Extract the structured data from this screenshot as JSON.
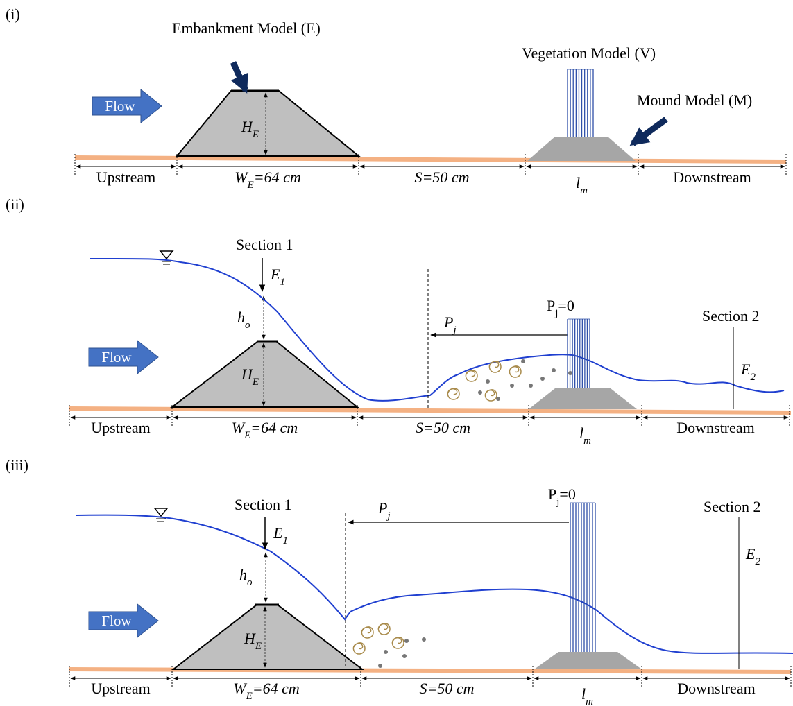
{
  "panels": [
    {
      "label": "(i)",
      "embankment_model": "Embankment Model (E)",
      "vegetation_model": "Vegetation Model (V)",
      "mound_model": "Mound Model (M)",
      "flow": "Flow",
      "embankment_height": {
        "main": "H",
        "sub": "E"
      },
      "dimensions": [
        {
          "main": "Upstream"
        },
        {
          "main": "W",
          "sub": "E",
          "tail": "=64 cm"
        },
        {
          "main": "S=50 cm"
        },
        {
          "main": "l",
          "sub": "m"
        },
        {
          "main": "Downstream"
        }
      ]
    },
    {
      "label": "(ii)",
      "section_1": "Section 1",
      "energy_1": {
        "main": "E",
        "sub": "1"
      },
      "overflow_depth": {
        "main": "h",
        "sub": "o"
      },
      "flow": "Flow",
      "embankment_height": {
        "main": "H",
        "sub": "E"
      },
      "jump_position": {
        "main": "P",
        "sub": "j"
      },
      "jump_origin": {
        "main": "P",
        "sub": "j",
        "tail": "=0"
      },
      "section_2": "Section 2",
      "energy_2": {
        "main": "E",
        "sub": "2"
      },
      "dimensions": [
        {
          "main": "Upstream"
        },
        {
          "main": "W",
          "sub": "E",
          "tail": "=64 cm"
        },
        {
          "main": "S=50 cm"
        },
        {
          "main": "l",
          "sub": "m"
        },
        {
          "main": "Downstream"
        }
      ]
    },
    {
      "label": "(iii)",
      "section_1": "Section 1",
      "energy_1": {
        "main": "E",
        "sub": "1"
      },
      "overflow_depth": {
        "main": "h",
        "sub": "o"
      },
      "flow": "Flow",
      "embankment_height": {
        "main": "H",
        "sub": "E"
      },
      "jump_position": {
        "main": "P",
        "sub": "j"
      },
      "jump_origin": {
        "main": "P",
        "sub": "j",
        "tail": "=0"
      },
      "section_2": "Section 2",
      "energy_2": {
        "main": "E",
        "sub": "2"
      },
      "dimensions": [
        {
          "main": "Upstream"
        },
        {
          "main": "W",
          "sub": "E",
          "tail": "=64 cm"
        },
        {
          "main": "S=50 cm"
        },
        {
          "main": "l",
          "sub": "m"
        },
        {
          "main": "Downstream"
        }
      ]
    }
  ]
}
